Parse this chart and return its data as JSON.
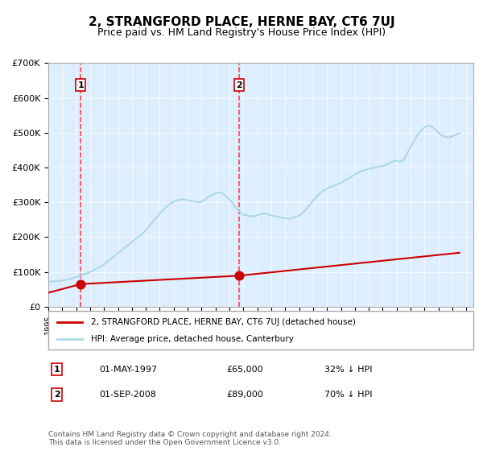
{
  "title": "2, STRANGFORD PLACE, HERNE BAY, CT6 7UJ",
  "subtitle": "Price paid vs. HM Land Registry's House Price Index (HPI)",
  "ylabel": "",
  "ylim": [
    0,
    700000
  ],
  "yticks": [
    0,
    100000,
    200000,
    300000,
    400000,
    500000,
    600000,
    700000
  ],
  "ytick_labels": [
    "£0",
    "£100K",
    "£200K",
    "£300K",
    "£400K",
    "£500K",
    "£600K",
    "£700K"
  ],
  "xlim_start": 1995.0,
  "xlim_end": 2025.5,
  "sale1_date": 1997.33,
  "sale1_price": 65000,
  "sale1_label": "1",
  "sale2_date": 2008.67,
  "sale2_price": 89000,
  "sale2_label": "2",
  "hpi_color": "#add8e6",
  "price_color": "#cc0000",
  "dashed_color": "#ff4444",
  "legend_label_price": "2, STRANGFORD PLACE, HERNE BAY, CT6 7UJ (detached house)",
  "legend_label_hpi": "HPI: Average price, detached house, Canterbury",
  "table_row1": [
    "1",
    "01-MAY-1997",
    "£65,000",
    "32% ↓ HPI"
  ],
  "table_row2": [
    "2",
    "01-SEP-2008",
    "£89,000",
    "70% ↓ HPI"
  ],
  "footer": "Contains HM Land Registry data © Crown copyright and database right 2024.\nThis data is licensed under the Open Government Licence v3.0.",
  "background_color": "#ddeeff",
  "plot_bg_color": "#ddeeff",
  "hpi_data_x": [
    1995.0,
    1995.25,
    1995.5,
    1995.75,
    1996.0,
    1996.25,
    1996.5,
    1996.75,
    1997.0,
    1997.25,
    1997.5,
    1997.75,
    1998.0,
    1998.25,
    1998.5,
    1998.75,
    1999.0,
    1999.25,
    1999.5,
    1999.75,
    2000.0,
    2000.25,
    2000.5,
    2000.75,
    2001.0,
    2001.25,
    2001.5,
    2001.75,
    2002.0,
    2002.25,
    2002.5,
    2002.75,
    2003.0,
    2003.25,
    2003.5,
    2003.75,
    2004.0,
    2004.25,
    2004.5,
    2004.75,
    2005.0,
    2005.25,
    2005.5,
    2005.75,
    2006.0,
    2006.25,
    2006.5,
    2006.75,
    2007.0,
    2007.25,
    2007.5,
    2007.75,
    2008.0,
    2008.25,
    2008.5,
    2008.75,
    2009.0,
    2009.25,
    2009.5,
    2009.75,
    2010.0,
    2010.25,
    2010.5,
    2010.75,
    2011.0,
    2011.25,
    2011.5,
    2011.75,
    2012.0,
    2012.25,
    2012.5,
    2012.75,
    2013.0,
    2013.25,
    2013.5,
    2013.75,
    2014.0,
    2014.25,
    2014.5,
    2014.75,
    2015.0,
    2015.25,
    2015.5,
    2015.75,
    2016.0,
    2016.25,
    2016.5,
    2016.75,
    2017.0,
    2017.25,
    2017.5,
    2017.75,
    2018.0,
    2018.25,
    2018.5,
    2018.75,
    2019.0,
    2019.25,
    2019.5,
    2019.75,
    2020.0,
    2020.25,
    2020.5,
    2020.75,
    2021.0,
    2021.25,
    2021.5,
    2021.75,
    2022.0,
    2022.25,
    2022.5,
    2022.75,
    2023.0,
    2023.25,
    2023.5,
    2023.75,
    2024.0,
    2024.25,
    2024.5
  ],
  "hpi_data_y": [
    72000,
    72500,
    73000,
    73500,
    75000,
    77000,
    79000,
    82000,
    85000,
    88000,
    92000,
    96000,
    100000,
    105000,
    110000,
    115000,
    122000,
    130000,
    138000,
    146000,
    154000,
    162000,
    170000,
    178000,
    186000,
    194000,
    202000,
    210000,
    220000,
    232000,
    244000,
    256000,
    268000,
    278000,
    288000,
    296000,
    302000,
    306000,
    308000,
    308000,
    306000,
    304000,
    302000,
    300000,
    302000,
    308000,
    316000,
    322000,
    326000,
    328000,
    326000,
    318000,
    308000,
    296000,
    282000,
    272000,
    265000,
    262000,
    260000,
    260000,
    263000,
    266000,
    268000,
    266000,
    262000,
    260000,
    258000,
    256000,
    254000,
    253000,
    255000,
    258000,
    262000,
    270000,
    280000,
    292000,
    305000,
    316000,
    326000,
    334000,
    340000,
    344000,
    348000,
    352000,
    356000,
    362000,
    368000,
    374000,
    380000,
    386000,
    390000,
    394000,
    396000,
    398000,
    400000,
    402000,
    404000,
    408000,
    414000,
    418000,
    420000,
    416000,
    422000,
    440000,
    460000,
    478000,
    494000,
    506000,
    516000,
    520000,
    518000,
    510000,
    500000,
    492000,
    488000,
    486000,
    490000,
    494000,
    498000
  ],
  "price_data_x": [
    1995.0,
    1997.33,
    2008.67,
    2024.5
  ],
  "price_data_y": [
    40000,
    65000,
    89000,
    155000
  ]
}
